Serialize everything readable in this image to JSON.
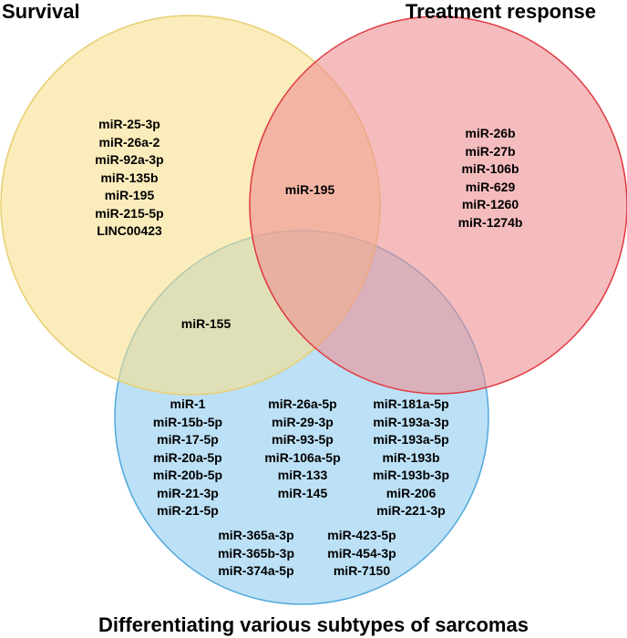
{
  "titles": {
    "survival": "Survival",
    "treatment": "Treatment response",
    "subtypes": "Differentiating various subtypes of sarcomas"
  },
  "colors": {
    "survival_fill": "#f6e08e",
    "survival_stroke": "#e8cf72",
    "treatment_fill": "#ee8f92",
    "treatment_stroke": "#e03a40",
    "subtypes_fill": "#8fcbef",
    "subtypes_stroke": "#52a8dc"
  },
  "sets": {
    "survival_only": [
      "miR-25-3p",
      "miR-26a-2",
      "miR-92a-3p",
      "miR-135b",
      "miR-195",
      "miR-215-5p",
      "LINC00423"
    ],
    "treatment_only": [
      "miR-26b",
      "miR-27b",
      "miR-106b",
      "miR-629",
      "miR-1260",
      "miR-1274b"
    ],
    "survival_treatment": [
      "miR-195"
    ],
    "survival_subtypes": [
      "miR-155"
    ],
    "subtypes_col1": [
      "miR-1",
      "miR-15b-5p",
      "miR-17-5p",
      "miR-20a-5p",
      "miR-20b-5p",
      "miR-21-3p",
      "miR-21-5p"
    ],
    "subtypes_col2": [
      "miR-26a-5p",
      "miR-29-3p",
      "miR-93-5p",
      "miR-106a-5p",
      "miR-133",
      "miR-145"
    ],
    "subtypes_col3": [
      "miR-181a-5p",
      "miR-193a-3p",
      "miR-193a-5p",
      "miR-193b",
      "miR-193b-3p",
      "miR-206",
      "miR-221-3p"
    ],
    "subtypes_col4": [
      "miR-365a-3p",
      "miR-365b-3p",
      "miR-374a-5p"
    ],
    "subtypes_col5": [
      "miR-423-5p",
      "miR-454-3p",
      "miR-7150"
    ]
  }
}
